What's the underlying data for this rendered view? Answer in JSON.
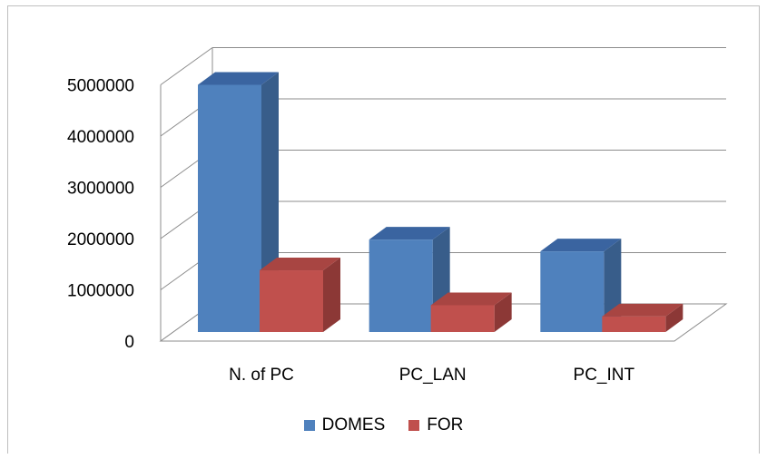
{
  "chart_data": {
    "type": "bar",
    "categories": [
      "N. of PC",
      "PC_LAN",
      "PC_INT"
    ],
    "series": [
      {
        "name": "DOMES",
        "values": [
          5000000,
          1980000,
          1750000
        ]
      },
      {
        "name": "FOR",
        "values": [
          1380000,
          700000,
          480000
        ]
      }
    ],
    "y_ticks": [
      "0",
      "1000000",
      "2000000",
      "3000000",
      "4000000",
      "5000000"
    ],
    "ylim": [
      0,
      5000000
    ],
    "grid": true,
    "legend_position": "bottom",
    "colors": {
      "DOMES": {
        "front": "#4f81bd",
        "side": "#385d8a",
        "top": "#3a64a0"
      },
      "FOR": {
        "front": "#c0504d",
        "side": "#8c3836",
        "top": "#a84542"
      }
    }
  }
}
